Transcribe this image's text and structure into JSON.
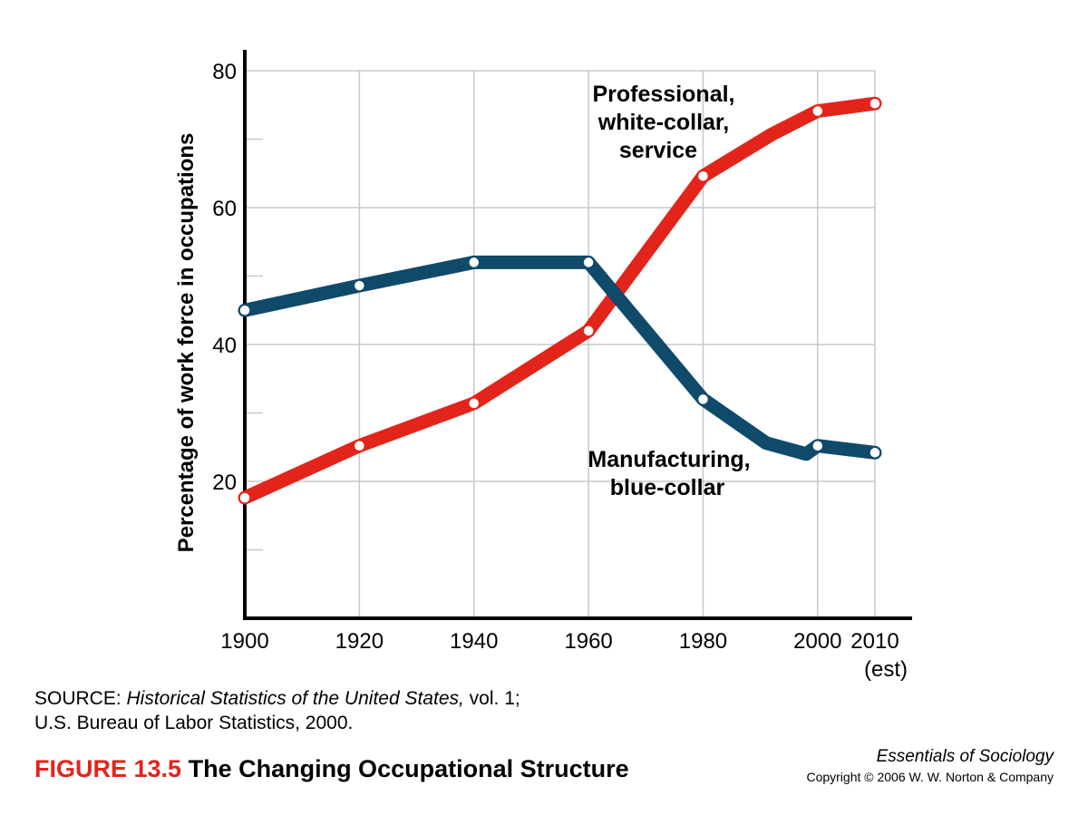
{
  "colors": {
    "professional": "#e3241b",
    "manufacturing": "#0f4a6b",
    "grid": "#c8c8c8",
    "axis": "#000000",
    "figure_number": "#e3241b"
  },
  "chart_data": {
    "type": "line",
    "ylabel": "Percentage of work force in occupations",
    "xlabel": "",
    "ylim": [
      0,
      80
    ],
    "xlim": [
      1900,
      2010
    ],
    "y_ticks": [
      "20",
      "40",
      "60",
      "80"
    ],
    "x_ticks": [
      "1900",
      "1920",
      "1940",
      "1960",
      "1980",
      "2000",
      "2010"
    ],
    "x_tick_note": "(est)",
    "grid": true,
    "series": [
      {
        "name": "Professional, white-collar, service",
        "label_lines": [
          "Professional,",
          "white-collar,",
          "service"
        ],
        "color_key": "professional",
        "x": [
          1900,
          1920,
          1940,
          1960,
          1980,
          1992,
          2000,
          2010
        ],
        "y": [
          17.6,
          25.2,
          31.4,
          42.0,
          64.6,
          70.7,
          74.1,
          75.2
        ],
        "markers": [
          1900,
          1920,
          1940,
          1960,
          1980,
          2000,
          2010
        ]
      },
      {
        "name": "Manufacturing, blue-collar",
        "label_lines": [
          "Manufacturing,",
          "blue-collar"
        ],
        "color_key": "manufacturing",
        "x": [
          1900,
          1920,
          1940,
          1960,
          1980,
          1991,
          1998,
          2000,
          2010
        ],
        "y": [
          45.0,
          48.6,
          52.0,
          52.0,
          32.0,
          25.6,
          24.0,
          25.2,
          24.2
        ],
        "markers": [
          1900,
          1920,
          1940,
          1960,
          1980,
          2000,
          2010
        ]
      }
    ]
  },
  "source": {
    "prefix": "SOURCE: ",
    "title": "Historical Statistics of the United States,",
    "suffix": " vol. 1;",
    "line2": "U.S. Bureau of Labor Statistics, 2000."
  },
  "figure": {
    "number": "FIGURE 13.5",
    "title": "The Changing Occupational Structure"
  },
  "book": {
    "title": "Essentials of Sociology",
    "copyright": "Copyright © 2006 W. W. Norton & Company"
  }
}
